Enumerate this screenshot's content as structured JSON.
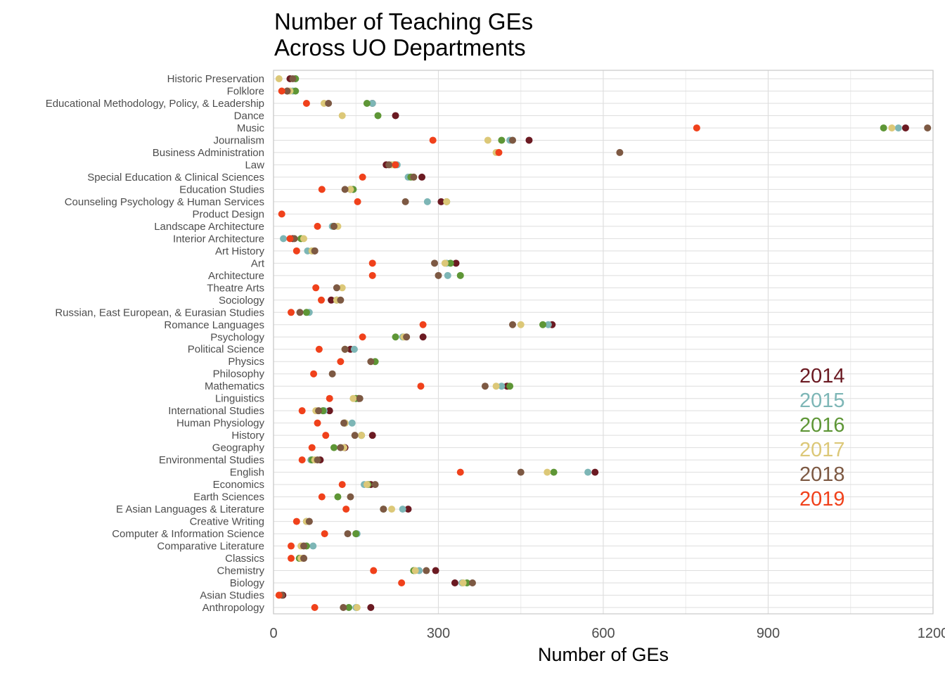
{
  "chart_data": {
    "type": "scatter",
    "title": [
      "Number of Teaching GEs",
      "Across UO Departments"
    ],
    "xlabel": "Number of GEs",
    "ylabel": "",
    "xlim": [
      0,
      1200
    ],
    "xticks": [
      "0",
      "300",
      "600",
      "900",
      "1200"
    ],
    "grid": true,
    "legend_position": "right, inside plot",
    "series": [
      {
        "name": "2014",
        "color": "#6B1A22"
      },
      {
        "name": "2015",
        "color": "#7DB6B6"
      },
      {
        "name": "2016",
        "color": "#5E9636"
      },
      {
        "name": "2017",
        "color": "#DCC878"
      },
      {
        "name": "2018",
        "color": "#7D5943"
      },
      {
        "name": "2019",
        "color": "#F0411B"
      }
    ],
    "categories": [
      {
        "label": "Historic Preservation",
        "values": [
          30,
          40,
          40,
          10,
          35,
          null
        ]
      },
      {
        "label": "Folklore",
        "values": [
          25,
          35,
          40,
          30,
          25,
          15
        ]
      },
      {
        "label": "Educational Methodology, Policy, & Leadership",
        "values": [
          180,
          180,
          170,
          92,
          100,
          60
        ]
      },
      {
        "label": "Dance",
        "values": [
          222,
          null,
          190,
          125,
          null,
          null
        ]
      },
      {
        "label": "Music",
        "values": [
          1150,
          1137,
          1110,
          1125,
          1190,
          770
        ]
      },
      {
        "label": "Journalism",
        "values": [
          465,
          430,
          415,
          390,
          435,
          290
        ]
      },
      {
        "label": "Business Administration",
        "values": [
          null,
          null,
          null,
          405,
          630,
          410
        ]
      },
      {
        "label": "Law",
        "values": [
          205,
          225,
          220,
          215,
          210,
          222
        ]
      },
      {
        "label": "Special Education & Clinical Sciences",
        "values": [
          270,
          245,
          250,
          255,
          255,
          162
        ]
      },
      {
        "label": "Education Studies",
        "values": [
          140,
          145,
          145,
          140,
          130,
          88
        ]
      },
      {
        "label": "Counseling Psychology & Human Services",
        "values": [
          305,
          280,
          315,
          315,
          240,
          153
        ]
      },
      {
        "label": "Product Design",
        "values": [
          null,
          null,
          null,
          null,
          null,
          15
        ]
      },
      {
        "label": "Landscape Architecture",
        "values": [
          110,
          107,
          110,
          117,
          110,
          80
        ]
      },
      {
        "label": "Interior Architecture",
        "values": [
          35,
          18,
          50,
          55,
          38,
          30
        ]
      },
      {
        "label": "Art History",
        "values": [
          75,
          62,
          70,
          70,
          75,
          42
        ]
      },
      {
        "label": "Art",
        "values": [
          332,
          315,
          322,
          312,
          293,
          180
        ]
      },
      {
        "label": "Architecture",
        "values": [
          null,
          317,
          340,
          null,
          300,
          180
        ]
      },
      {
        "label": "Theatre Arts",
        "values": [
          null,
          null,
          null,
          125,
          115,
          77
        ]
      },
      {
        "label": "Sociology",
        "values": [
          105,
          115,
          115,
          115,
          122,
          87
        ]
      },
      {
        "label": "Russian, East European, & Eurasian Studies",
        "values": [
          null,
          65,
          60,
          null,
          48,
          32
        ]
      },
      {
        "label": "Romance Languages",
        "values": [
          507,
          500,
          490,
          450,
          435,
          272
        ]
      },
      {
        "label": "Psychology",
        "values": [
          272,
          235,
          222,
          237,
          242,
          162
        ]
      },
      {
        "label": "Political Science",
        "values": [
          140,
          147,
          130,
          130,
          130,
          83
        ]
      },
      {
        "label": "Physics",
        "values": [
          null,
          null,
          185,
          null,
          177,
          122
        ]
      },
      {
        "label": "Philosophy",
        "values": [
          null,
          null,
          null,
          null,
          107,
          73
        ]
      },
      {
        "label": "Mathematics",
        "values": [
          425,
          415,
          430,
          405,
          385,
          268
        ]
      },
      {
        "label": "Linguistics",
        "values": [
          155,
          150,
          150,
          145,
          157,
          102
        ]
      },
      {
        "label": "International Studies",
        "values": [
          102,
          92,
          90,
          77,
          82,
          52
        ]
      },
      {
        "label": "Human Physiology",
        "values": [
          130,
          143,
          130,
          130,
          128,
          80
        ]
      },
      {
        "label": "History",
        "values": [
          180,
          160,
          160,
          160,
          148,
          95
        ]
      },
      {
        "label": "Geography",
        "values": [
          130,
          122,
          110,
          128,
          122,
          70
        ]
      },
      {
        "label": "Environmental Studies",
        "values": [
          85,
          68,
          70,
          75,
          80,
          52
        ]
      },
      {
        "label": "English",
        "values": [
          585,
          572,
          510,
          498,
          450,
          340
        ]
      },
      {
        "label": "Economics",
        "values": [
          177,
          165,
          172,
          170,
          185,
          125
        ]
      },
      {
        "label": "Earth Sciences",
        "values": [
          null,
          null,
          117,
          null,
          140,
          88
        ]
      },
      {
        "label": "E Asian Languages & Literature",
        "values": [
          245,
          235,
          200,
          215,
          200,
          132
        ]
      },
      {
        "label": "Creative Writing",
        "values": [
          65,
          60,
          60,
          60,
          65,
          42
        ]
      },
      {
        "label": "Computer & Information Science",
        "values": [
          150,
          152,
          150,
          null,
          135,
          93
        ]
      },
      {
        "label": "Comparative Literature",
        "values": [
          null,
          72,
          60,
          50,
          55,
          32
        ]
      },
      {
        "label": "Classics",
        "values": [
          55,
          47,
          47,
          50,
          55,
          32
        ]
      },
      {
        "label": "Chemistry",
        "values": [
          295,
          265,
          255,
          258,
          278,
          182
        ]
      },
      {
        "label": "Biology",
        "values": [
          330,
          343,
          352,
          345,
          362,
          233
        ]
      },
      {
        "label": "Asian Studies",
        "values": [
          17,
          null,
          null,
          10,
          15,
          10
        ]
      },
      {
        "label": "Anthropology",
        "values": [
          177,
          150,
          137,
          152,
          127,
          75
        ]
      }
    ]
  }
}
